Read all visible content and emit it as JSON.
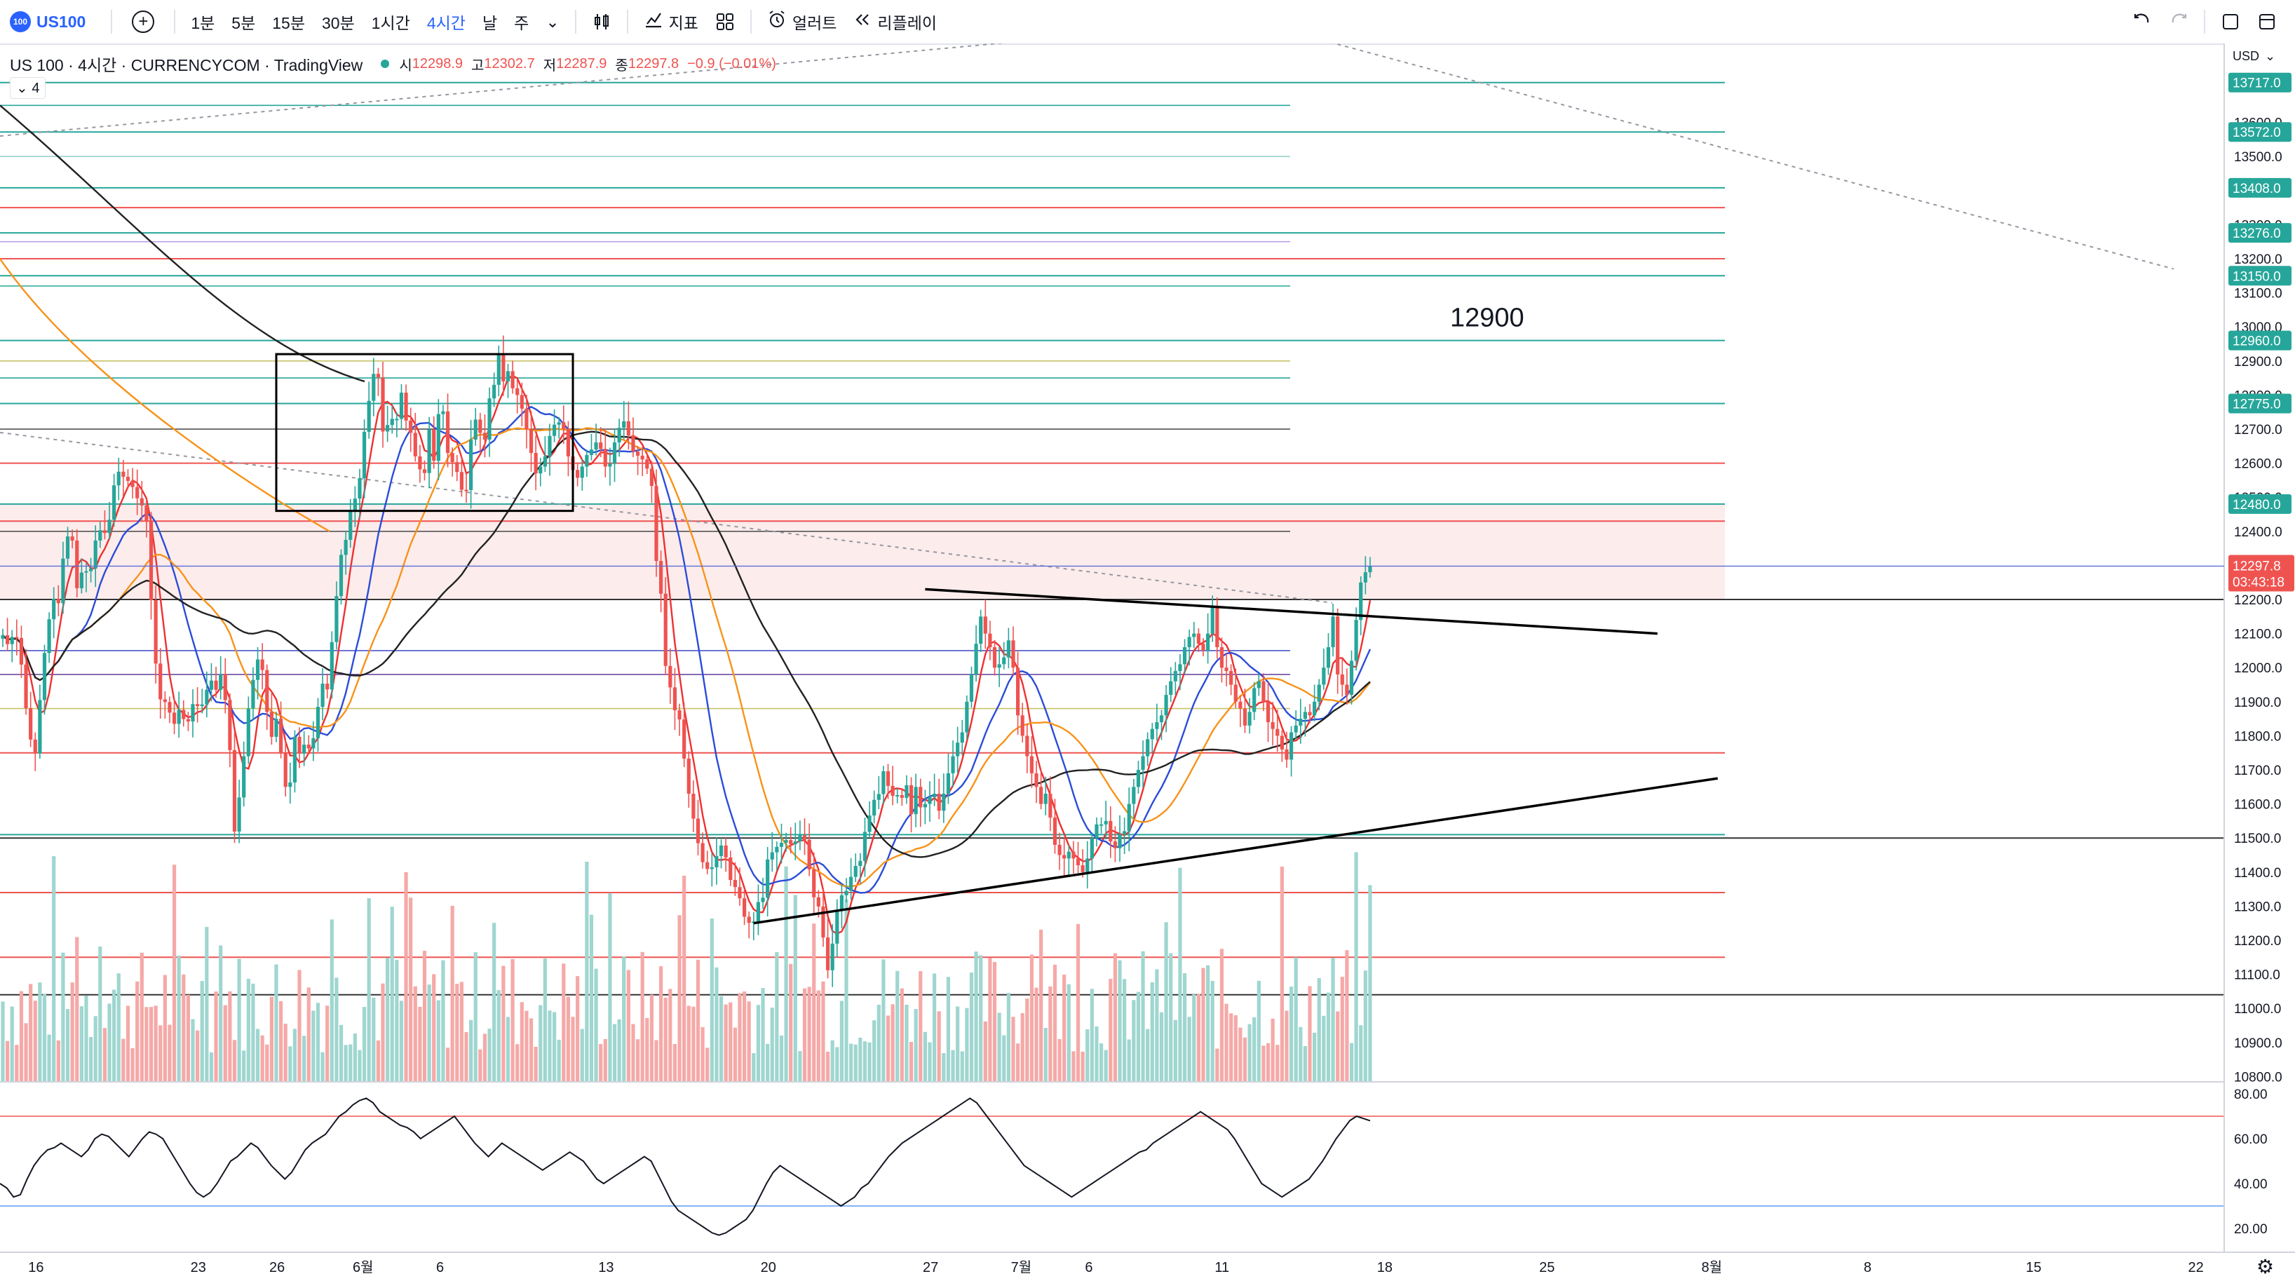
{
  "toolbar": {
    "symbol": "US100",
    "logo_text": "100",
    "intervals": [
      "1분",
      "5분",
      "15분",
      "30분",
      "1시간",
      "4시간",
      "날",
      "주"
    ],
    "active_interval": "4시간",
    "indicators_label": "지표",
    "alert_label": "얼러트",
    "replay_label": "리플레이"
  },
  "legend": {
    "title": "US 100 · 4시간 · CURRENCYCOM · TradingView",
    "open_label": "시",
    "open": "12298.9",
    "high_label": "고",
    "high": "12302.7",
    "low_label": "저",
    "low": "12287.9",
    "close_label": "종",
    "close": "12297.8",
    "change": "−0.9 (−0.01%)",
    "collapsed_count": "4"
  },
  "annotation_text": "12900",
  "price_scale": {
    "currency": "USD",
    "ticks": [
      13600,
      13500,
      13400,
      13300,
      13200,
      13100,
      13000,
      12900,
      12800,
      12700,
      12600,
      12500,
      12400,
      12300,
      12200,
      12100,
      12000,
      11900,
      11800,
      11700,
      11600,
      11500,
      11400,
      11300,
      11200,
      11100,
      11000,
      10900,
      10800
    ],
    "tick_labels": [
      "13600.0",
      "13500.0",
      "13400.0",
      "13300.0",
      "13200.0",
      "13100.0",
      "13000.0",
      "12900.0",
      "12800.0",
      "12700.0",
      "12600.0",
      "12500.0",
      "12400.0",
      "12300.0",
      "12200.0",
      "12100.0",
      "12000.0",
      "11900.0",
      "11800.0",
      "11700.0",
      "11600.0",
      "11500.0",
      "11400.0",
      "11300.0",
      "11200.0",
      "11100.0",
      "11000.0",
      "10900.0",
      "10800.0"
    ],
    "level_labels": [
      "13717.0",
      "13572.0",
      "13408.0",
      "13276.0",
      "13150.0",
      "12960.0",
      "12775.0",
      "12480.0"
    ],
    "level_values": [
      13717,
      13572,
      13408,
      13276,
      13150,
      12960,
      12775,
      12480
    ],
    "last_price_label": "12297.8",
    "countdown": "03:43:18",
    "last_price": 12297.8
  },
  "rsi_scale": {
    "tick_labels": [
      "80.00",
      "60.00",
      "40.00",
      "20.00"
    ],
    "ticks": [
      80,
      60,
      40,
      20
    ],
    "upper": 70,
    "lower": 30
  },
  "time_axis": {
    "labels": [
      "16",
      "23",
      "26",
      "6월",
      "6",
      "13",
      "20",
      "27",
      "7월",
      "6",
      "11",
      "18",
      "25",
      "8월",
      "8",
      "15",
      "22"
    ],
    "bar_index": [
      7,
      42,
      59,
      77,
      95,
      130,
      165,
      200,
      219,
      235,
      263,
      298,
      333,
      368,
      403,
      438,
      473
    ]
  },
  "colors": {
    "up": "#26a69a",
    "down": "#ef5350",
    "ma_fast": "#ef3030",
    "ma_mid": "#2b4cd8",
    "ma_slow": "#f7931a",
    "ma_long": "#222222",
    "accent": "#2962ff"
  },
  "chart_data": {
    "type": "candlestick",
    "title": "US 100 · 4시간 · CURRENCYCOM",
    "y_range": [
      10800,
      13800
    ],
    "bar_count_visible": 500,
    "closes": [
      12095,
      12069,
      12090,
      12087,
      12009,
      11881,
      11789,
      11748,
      11905,
      12043,
      12142,
      12202,
      12189,
      12320,
      12385,
      12373,
      12233,
      12279,
      12283,
      12291,
      12373,
      12403,
      12395,
      12434,
      12535,
      12575,
      12560,
      12548,
      12530,
      12497,
      12476,
      12430,
      12198,
      12012,
      11907,
      11899,
      11868,
      11835,
      11876,
      11849,
      11842,
      11893,
      11887,
      11892,
      11935,
      11962,
      11935,
      11981,
      11905,
      11758,
      11519,
      11619,
      11740,
      11880,
      11964,
      12024,
      11993,
      11870,
      11797,
      11850,
      11750,
      11650,
      11663,
      11797,
      11748,
      11774,
      11763,
      11793,
      11885,
      11953,
      11936,
      12075,
      12210,
      12331,
      12375,
      12460,
      12496,
      12556,
      12692,
      12783,
      12862,
      12852,
      12693,
      12712,
      12730,
      12730,
      12807,
      12725,
      12689,
      12620,
      12582,
      12571,
      12699,
      12607,
      12744,
      12752,
      12630,
      12603,
      12574,
      12522,
      12521,
      12669,
      12728,
      12689,
      12669,
      12790,
      12830,
      12920,
      12840,
      12870,
      12820,
      12800,
      12760,
      12700,
      12630,
      12570,
      12590,
      12620,
      12680,
      12713,
      12720,
      12700,
      12620,
      12580,
      12557,
      12590,
      12624,
      12640,
      12661,
      12642,
      12590,
      12598,
      12661,
      12704,
      12723,
      12681,
      12634,
      12622,
      12611,
      12584,
      12533,
      12313,
      12217,
      12005,
      11942,
      11875,
      11848,
      11733,
      11630,
      11557,
      11485,
      11429,
      11409,
      11414,
      11447,
      11478,
      11443,
      11377,
      11356,
      11323,
      11269,
      11251,
      11255,
      11312,
      11325,
      11437,
      11458,
      11474,
      11486,
      11494,
      11482,
      11490,
      11508,
      11495,
      11408,
      11326,
      11299,
      11208,
      11112,
      11190,
      11287,
      11332,
      11345,
      11386,
      11418,
      11433,
      11518,
      11566,
      11612,
      11629,
      11696,
      11653,
      11624,
      11626,
      11618,
      11655,
      11570,
      11650,
      11590,
      11600,
      11620,
      11630,
      11580,
      11630,
      11690,
      11740,
      11780,
      11810,
      11900,
      11980,
      12070,
      12150,
      12100,
      12060,
      12000,
      12010,
      12030,
      12080,
      12000,
      11860,
      11800,
      11740,
      11690,
      11650,
      11600,
      11630,
      11560,
      11480,
      11450,
      11440,
      11460,
      11440,
      11420,
      11400,
      11440,
      11500,
      11540,
      11540,
      11550,
      11490,
      11470,
      11510,
      11520,
      11600,
      11650,
      11700,
      11740,
      11790,
      11820,
      11840,
      11860,
      11920,
      11960,
      11990,
      12010,
      12060,
      12090,
      12100,
      12070,
      12050,
      12100,
      12180,
      12060,
      12000,
      11990,
      11950,
      11900,
      11880,
      11830,
      11870,
      11940,
      11960,
      11900,
      11840,
      11820,
      11800,
      11760,
      11730,
      11810,
      11830,
      11850,
      11870,
      11860,
      11900,
      11950,
      12000,
      12060,
      12150,
      11980,
      11950,
      11920,
      12020,
      12140,
      12250,
      12280,
      12297.8
    ],
    "volume_approx": "Volume histogram (bottom of main pane) — heights vary between ~10% and ~60% of the pane; colors follow candle direction",
    "moving_averages": [
      {
        "color": "#ef3030",
        "kind": "short MA"
      },
      {
        "color": "#2b4cd8",
        "kind": "medium MA"
      },
      {
        "color": "#f7931a",
        "kind": "long MA"
      },
      {
        "color": "#222222",
        "kind": "longest MA"
      }
    ],
    "drawings": {
      "box": {
        "x_from_bar": 59,
        "x_to_bar": 123,
        "y_top": 12920,
        "y_bottom": 12460
      },
      "upper_trendline": {
        "from": {
          "bar": 199,
          "price": 12230
        },
        "to": {
          "bar": 357,
          "price": 12100
        }
      },
      "lower_trendline": {
        "from": {
          "bar": 162,
          "price": 11250
        },
        "to": {
          "bar": 370,
          "price": 11675
        }
      },
      "horizontal_levels_green": [
        13717,
        13572,
        13408,
        13276,
        13150,
        12960,
        12775,
        12480,
        11510
      ],
      "horizontal_levels_red": [
        13350,
        13200,
        12600,
        12430,
        11750,
        11340,
        11150
      ],
      "horizontal_levels_black": [
        12200,
        11500,
        11040
      ]
    },
    "rsi_series": [
      40,
      38,
      34,
      35,
      42,
      48,
      52,
      55,
      56,
      58,
      56,
      54,
      52,
      55,
      60,
      62,
      61,
      58,
      55,
      52,
      56,
      60,
      63,
      62,
      60,
      55,
      50,
      45,
      40,
      36,
      34,
      36,
      40,
      45,
      50,
      52,
      55,
      58,
      56,
      52,
      48,
      45,
      42,
      45,
      50,
      55,
      58,
      60,
      62,
      66,
      70,
      72,
      75,
      77,
      78,
      76,
      72,
      70,
      68,
      66,
      65,
      63,
      60,
      62,
      64,
      66,
      68,
      70,
      66,
      62,
      58,
      55,
      52,
      55,
      58,
      56,
      54,
      52,
      50,
      48,
      46,
      48,
      50,
      52,
      54,
      52,
      50,
      46,
      42,
      40,
      42,
      44,
      46,
      48,
      50,
      52,
      50,
      44,
      38,
      32,
      28,
      26,
      24,
      22,
      20,
      18,
      17,
      18,
      20,
      22,
      24,
      28,
      34,
      40,
      45,
      48,
      46,
      44,
      42,
      40,
      38,
      36,
      34,
      32,
      30,
      32,
      34,
      38,
      40,
      44,
      48,
      52,
      55,
      58,
      60,
      62,
      64,
      66,
      68,
      70,
      72,
      74,
      76,
      78,
      76,
      72,
      68,
      64,
      60,
      56,
      52,
      48,
      46,
      44,
      42,
      40,
      38,
      36,
      34,
      36,
      38,
      40,
      42,
      44,
      46,
      48,
      50,
      52,
      54,
      55,
      58,
      60,
      62,
      64,
      66,
      68,
      70,
      72,
      70,
      68,
      66,
      64,
      60,
      55,
      50,
      45,
      40,
      38,
      36,
      34,
      36,
      38,
      40,
      42,
      46,
      50,
      55,
      60,
      64,
      68,
      70,
      69,
      68
    ],
    "rsi_range": [
      10,
      85
    ],
    "x_axis_labels": [
      "16",
      "23",
      "26",
      "6월",
      "6",
      "13",
      "20",
      "27",
      "7월",
      "6",
      "11",
      "18",
      "25",
      "8월",
      "8",
      "15",
      "22"
    ]
  }
}
